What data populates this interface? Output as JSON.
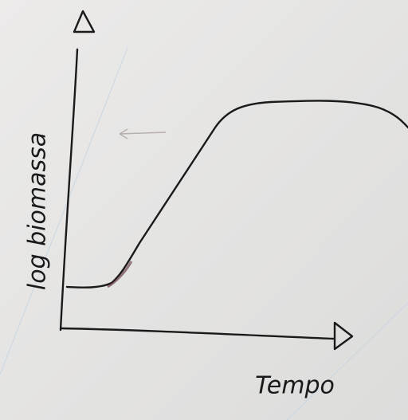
{
  "axes": {
    "y_label": "log biomassa",
    "x_label": "Tempo"
  }
}
